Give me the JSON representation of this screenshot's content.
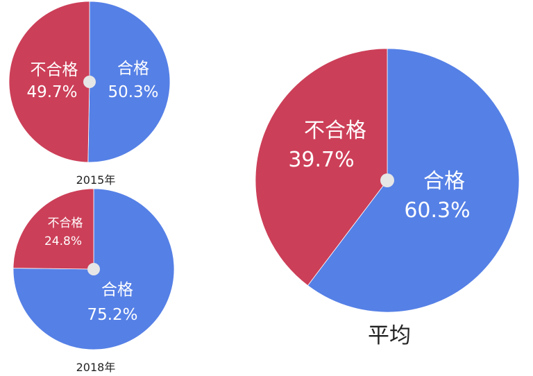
{
  "colors": {
    "pass": "#5580e6",
    "fail": "#cc3f58",
    "center_dot": "#e6e6e6",
    "title_text": "#222222"
  },
  "chart_data": [
    {
      "type": "pie",
      "title": "2015年",
      "slices": [
        {
          "label": "合格",
          "value": 50.3,
          "value_label": "50.3%"
        },
        {
          "label": "不合格",
          "value": 49.7,
          "value_label": "49.7%"
        }
      ]
    },
    {
      "type": "pie",
      "title": "2018年",
      "slices": [
        {
          "label": "合格",
          "value": 75.2,
          "value_label": "75.2%"
        },
        {
          "label": "不合格",
          "value": 24.8,
          "value_label": "24.8%"
        }
      ]
    },
    {
      "type": "pie",
      "title": "平均",
      "slices": [
        {
          "label": "合格",
          "value": 60.3,
          "value_label": "60.3%"
        },
        {
          "label": "不合格",
          "value": 39.7,
          "value_label": "39.7%"
        }
      ]
    }
  ]
}
